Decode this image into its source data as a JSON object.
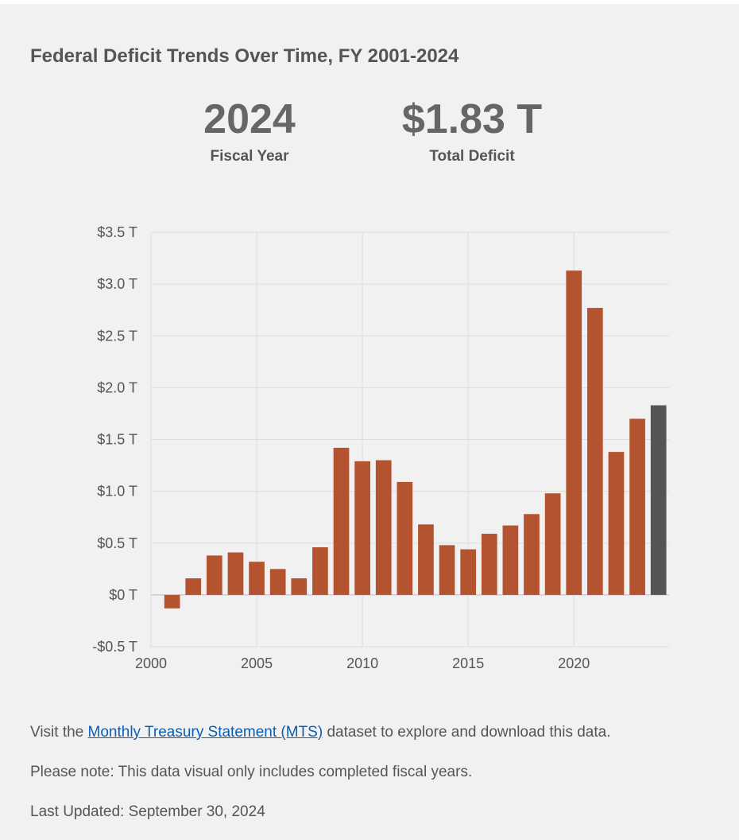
{
  "title": "Federal Deficit Trends Over Time, FY 2001-2024",
  "highlight": {
    "year_value": "2024",
    "year_label": "Fiscal Year",
    "deficit_value": "$1.83 T",
    "deficit_label": "Total Deficit"
  },
  "chart_data": {
    "type": "bar",
    "title": "Federal Deficit Trends Over Time, FY 2001-2024",
    "xlabel": "",
    "ylabel": "",
    "unit": "Trillions of USD",
    "x": [
      2001,
      2002,
      2003,
      2004,
      2005,
      2006,
      2007,
      2008,
      2009,
      2010,
      2011,
      2012,
      2013,
      2014,
      2015,
      2016,
      2017,
      2018,
      2019,
      2020,
      2021,
      2022,
      2023,
      2024
    ],
    "values": [
      -0.13,
      0.16,
      0.38,
      0.41,
      0.32,
      0.25,
      0.16,
      0.46,
      1.42,
      1.29,
      1.3,
      1.09,
      0.68,
      0.48,
      0.44,
      0.59,
      0.67,
      0.78,
      0.98,
      3.13,
      2.77,
      1.38,
      1.7,
      1.83
    ],
    "highlighted_x": 2024,
    "xlim": [
      2000,
      2024.5
    ],
    "ylim": [
      -0.5,
      3.5
    ],
    "x_ticks": [
      2000,
      2005,
      2010,
      2015,
      2020
    ],
    "x_tick_labels": [
      "2000",
      "2005",
      "2010",
      "2015",
      "2020"
    ],
    "y_ticks": [
      -0.5,
      0,
      0.5,
      1.0,
      1.5,
      2.0,
      2.5,
      3.0,
      3.5
    ],
    "y_tick_labels": [
      "-$0.5 T",
      "$0 T",
      "$0.5 T",
      "$1.0 T",
      "$1.5 T",
      "$2.0 T",
      "$2.5 T",
      "$3.0 T",
      "$3.5 T"
    ],
    "grid": true,
    "colors": {
      "bar": "#b4532f",
      "highlight": "#555555",
      "grid": "#dddddd",
      "zero_line": "#bbbbbb"
    }
  },
  "footer": {
    "visit_prefix": "Visit the ",
    "link_label": "Monthly Treasury Statement (MTS)",
    "visit_suffix": " dataset to explore and download this data.",
    "note": "Please note: This data visual only includes completed fiscal years.",
    "last_updated": "Last Updated: September 30, 2024"
  }
}
